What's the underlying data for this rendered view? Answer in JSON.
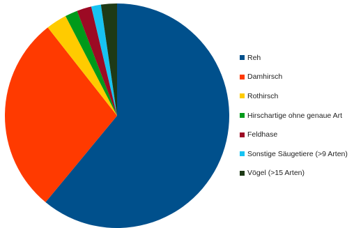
{
  "chart_data": {
    "type": "pie",
    "title": "",
    "legend_position": "right",
    "categories": [
      "Reh",
      "Damhirsch",
      "Rothirsch",
      "Hirschartige ohne genaue Art",
      "Feldhase",
      "Sonstige Säugetiere (>9 Arten)",
      "Vögel (>15 Arten)"
    ],
    "values": [
      61.0,
      28.4,
      3.0,
      1.8,
      2.1,
      1.4,
      2.3
    ],
    "colors": [
      "#00508C",
      "#FF3A00",
      "#FFCB00",
      "#009A1A",
      "#9C0A24",
      "#17C3F2",
      "#1E3A16"
    ],
    "start_angle_deg": 0,
    "direction": "clockwise"
  }
}
